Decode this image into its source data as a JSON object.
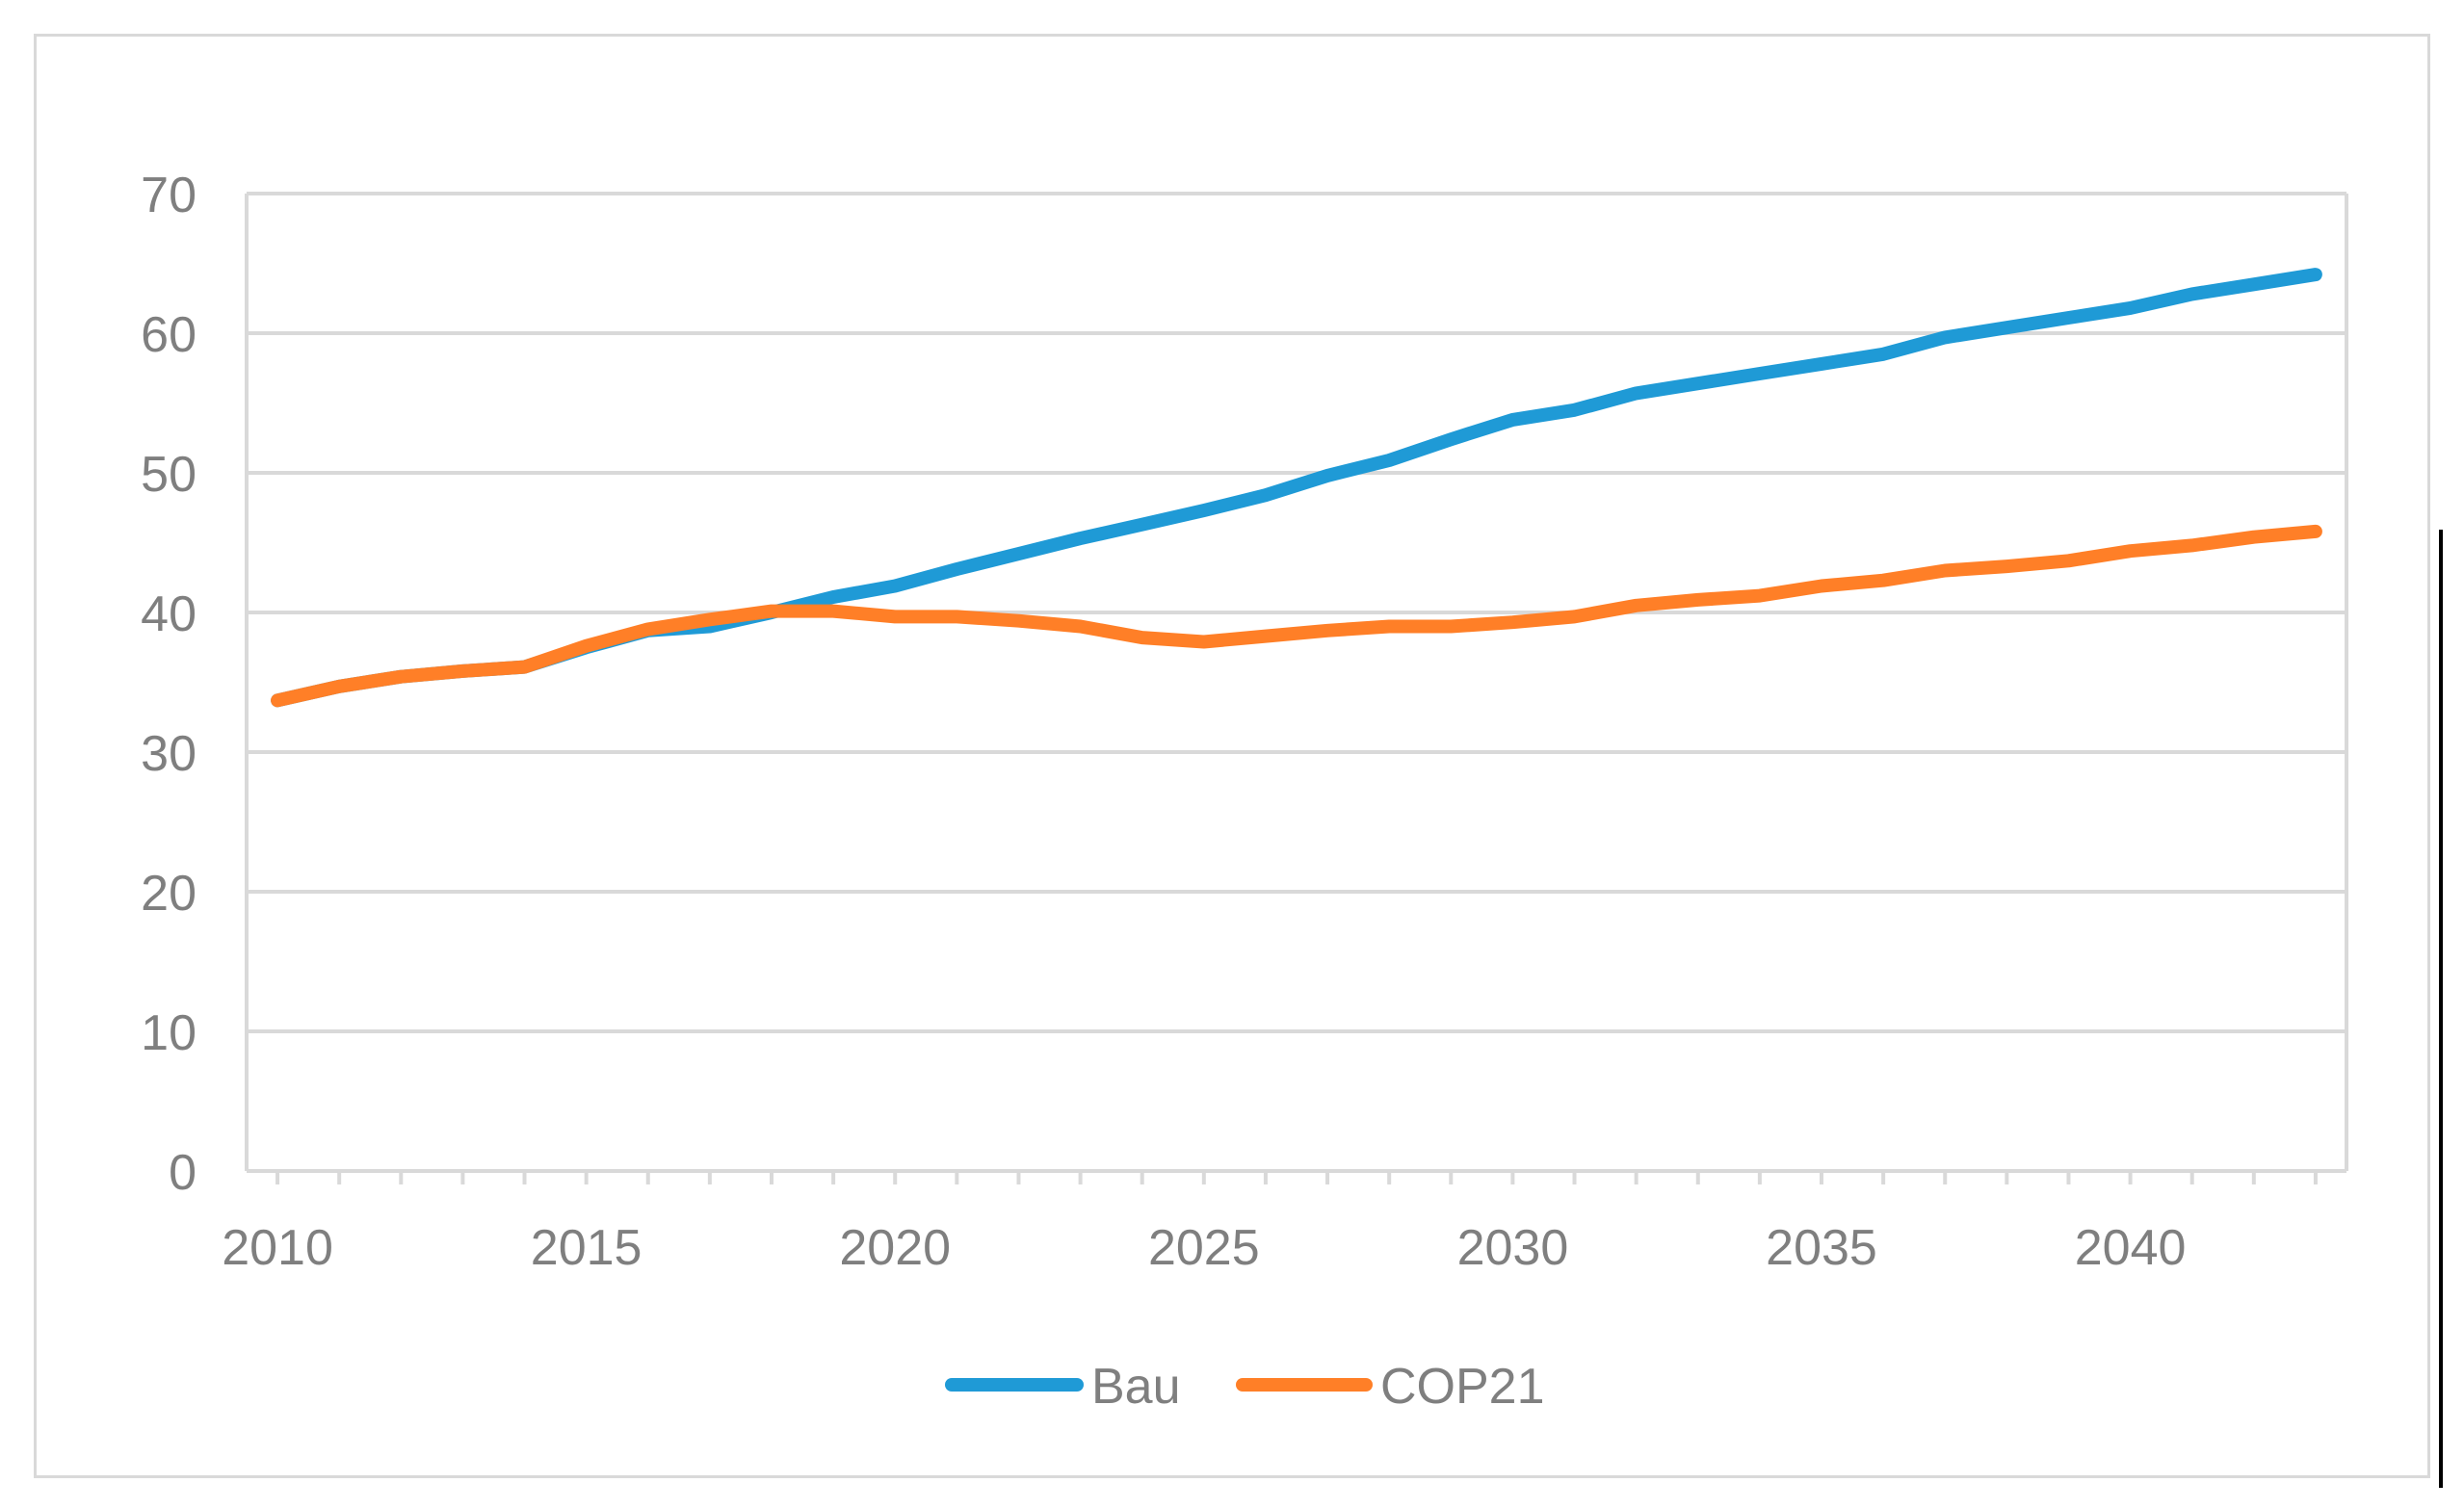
{
  "chart_data": {
    "type": "line",
    "title": "",
    "xlabel": "",
    "ylabel": "",
    "x": [
      2010,
      2011,
      2012,
      2013,
      2014,
      2015,
      2016,
      2017,
      2018,
      2019,
      2020,
      2021,
      2022,
      2023,
      2024,
      2025,
      2026,
      2027,
      2028,
      2029,
      2030,
      2031,
      2032,
      2033,
      2034,
      2035,
      2036,
      2037,
      2038,
      2039,
      2040,
      2041,
      2042,
      2043
    ],
    "xlim": [
      2009.5,
      2043.5
    ],
    "ylim": [
      0,
      70
    ],
    "y_ticks": [
      0,
      10,
      20,
      30,
      40,
      50,
      60,
      70
    ],
    "x_tick_labels": [
      "2010",
      "2015",
      "2020",
      "2025",
      "2030",
      "2035",
      "2040"
    ],
    "x_tick_values": [
      2010,
      2015,
      2020,
      2025,
      2030,
      2035,
      2040
    ],
    "grid": true,
    "legend_position": "bottom-center",
    "series": [
      {
        "name": "Bau",
        "color": "#1f9ad6",
        "values": [
          33.7,
          34.7,
          35.4,
          35.8,
          36.1,
          37.5,
          38.7,
          39.0,
          40.0,
          41.1,
          41.9,
          43.1,
          44.2,
          45.3,
          46.3,
          47.3,
          48.4,
          49.8,
          50.9,
          52.4,
          53.8,
          54.5,
          55.7,
          56.4,
          57.1,
          57.8,
          58.5,
          59.7,
          60.4,
          61.1,
          61.8,
          62.8,
          63.5,
          64.2
        ]
      },
      {
        "name": "COP21",
        "color": "#ff7f27",
        "values": [
          33.7,
          34.7,
          35.4,
          35.8,
          36.1,
          37.6,
          38.8,
          39.5,
          40.1,
          40.1,
          39.7,
          39.7,
          39.4,
          39.0,
          38.2,
          37.9,
          38.3,
          38.7,
          39.0,
          39.0,
          39.3,
          39.7,
          40.5,
          40.9,
          41.2,
          41.9,
          42.3,
          43.0,
          43.3,
          43.7,
          44.4,
          44.8,
          45.4,
          45.8
        ]
      }
    ]
  }
}
